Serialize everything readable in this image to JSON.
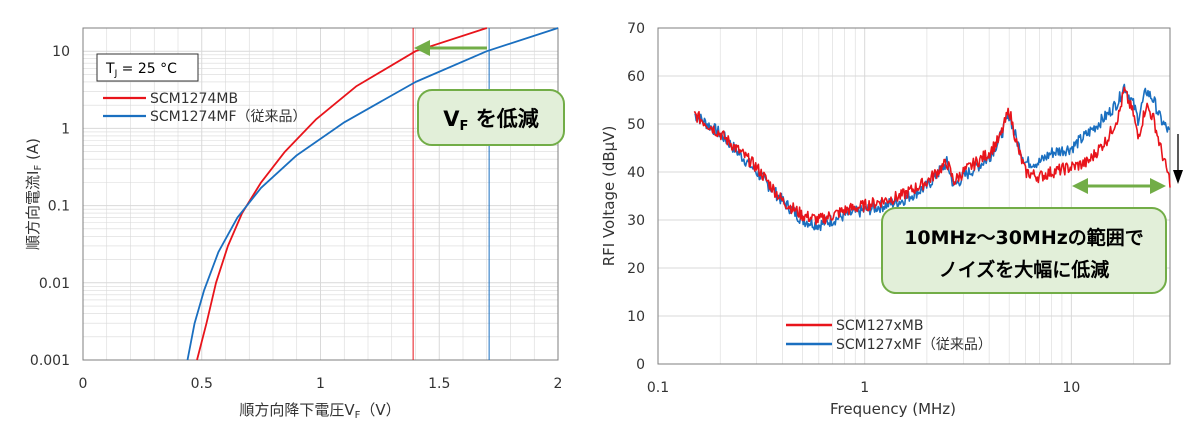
{
  "colors": {
    "red": "#e8141b",
    "blue": "#1a6fc0",
    "green": "#72ad47",
    "callout_fill": "#e2efd9",
    "grid": "#d9d9d9"
  },
  "left": {
    "temp_label": {
      "T": "T",
      "sub": "J",
      "rest": " = 25 °C"
    },
    "callout": {
      "V": "V",
      "sub": "F",
      "rest": " を低減"
    },
    "xlabel": {
      "main": "順方向降下電圧V",
      "sub": "F",
      "tail": "（V）"
    },
    "ylabel": {
      "main": "順方向電流I",
      "sub": "F",
      "tail": "  (A)"
    }
  },
  "right": {
    "callout_line1": "10MHz～30MHzの範囲で",
    "callout_line2": "ノイズを大幅に低減"
  },
  "chart_data": [
    {
      "type": "line",
      "xlabel": "順方向降下電圧VF（V）",
      "ylabel": "順方向電流IF (A)",
      "xlim": [
        0,
        2
      ],
      "ylim": [
        0.001,
        20
      ],
      "y_scale": "log",
      "grid": true,
      "legend": "top-left",
      "x_ticks": [
        "0",
        "0.5",
        "1",
        "1.5",
        "2"
      ],
      "y_ticks": [
        "0.001",
        "0.01",
        "0.1",
        "1",
        "10"
      ],
      "series": [
        {
          "name": "SCM1274MB",
          "color": "#e8141b",
          "x": [
            0.48,
            0.52,
            0.56,
            0.61,
            0.67,
            0.75,
            0.85,
            0.98,
            1.15,
            1.4,
            1.7
          ],
          "y": [
            0.001,
            0.003,
            0.01,
            0.03,
            0.08,
            0.2,
            0.5,
            1.3,
            3.5,
            10,
            20
          ]
        },
        {
          "name": "SCM1274MF（従来品）",
          "color": "#1a6fc0",
          "x": [
            0.44,
            0.47,
            0.51,
            0.57,
            0.65,
            0.75,
            0.9,
            1.1,
            1.4,
            1.7,
            2.0
          ],
          "y": [
            0.001,
            0.003,
            0.008,
            0.025,
            0.07,
            0.17,
            0.45,
            1.2,
            4,
            10,
            20
          ]
        }
      ],
      "annotations": [
        {
          "type": "vline",
          "x": 1.39,
          "color": "#e8141b"
        },
        {
          "type": "vline",
          "x": 1.71,
          "color": "#1a6fc0"
        }
      ]
    },
    {
      "type": "line",
      "xlabel": "Frequency (MHz)",
      "ylabel": "RFI Voltage (dBμV)",
      "xlim": [
        0.1,
        30
      ],
      "x_scale": "log",
      "ylim": [
        0,
        70
      ],
      "grid": true,
      "legend": "bottom-center",
      "x_ticks": [
        "0.1",
        "1",
        "10"
      ],
      "y_ticks": [
        "0",
        "10",
        "20",
        "30",
        "40",
        "50",
        "60",
        "70"
      ],
      "series": [
        {
          "name": "SCM127xMB",
          "color": "#e8141b",
          "x": [
            0.15,
            0.2,
            0.3,
            0.4,
            0.5,
            0.6,
            0.7,
            0.8,
            1.0,
            1.5,
            2.0,
            2.5,
            2.7,
            3.0,
            4.0,
            4.5,
            5.0,
            5.5,
            6.0,
            7.0,
            8.0,
            10.0,
            12.0,
            15.0,
            17.0,
            18.0,
            20.0,
            21.0,
            23.0,
            25.0,
            27.0,
            30.0
          ],
          "y": [
            52,
            48,
            41,
            34,
            31,
            30,
            31,
            32,
            33,
            35,
            38,
            42,
            38,
            40,
            44,
            47,
            53,
            45,
            40,
            39,
            40,
            41,
            42,
            47,
            52,
            57,
            52,
            47,
            54,
            51,
            45,
            38
          ]
        },
        {
          "name": "SCM127xMF（従来品）",
          "color": "#1a6fc0",
          "x": [
            0.15,
            0.2,
            0.3,
            0.4,
            0.5,
            0.6,
            0.7,
            0.8,
            1.0,
            1.5,
            2.0,
            2.5,
            2.7,
            3.0,
            4.0,
            4.5,
            5.0,
            5.5,
            6.0,
            7.0,
            8.0,
            10.0,
            12.0,
            15.0,
            17.0,
            18.0,
            20.0,
            21.0,
            23.0,
            25.0,
            27.0,
            30.0
          ],
          "y": [
            52,
            48,
            40,
            34,
            30,
            29,
            30,
            31,
            32,
            34,
            37,
            42,
            37,
            39,
            43,
            47,
            52,
            46,
            42,
            42,
            44,
            45,
            48,
            52,
            55,
            58,
            54,
            51,
            57,
            55,
            51,
            48
          ]
        }
      ]
    }
  ]
}
